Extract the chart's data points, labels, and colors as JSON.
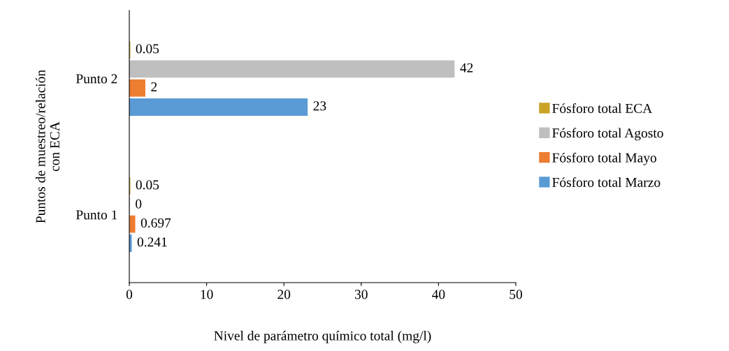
{
  "chart_data": {
    "type": "bar",
    "orientation": "horizontal",
    "categories": [
      "Punto 2",
      "Punto 1"
    ],
    "series": [
      {
        "name": "Fósforo total ECA",
        "color": "#c9a227",
        "values": [
          0.05,
          0.05
        ]
      },
      {
        "name": "Fósforo total Agosto",
        "color": "#bfbfbf",
        "values": [
          42,
          0
        ]
      },
      {
        "name": "Fósforo total Mayo",
        "color": "#ed7d31",
        "values": [
          2,
          0.697
        ]
      },
      {
        "name": "Fósforo total Marzo",
        "color": "#5b9bd5",
        "values": [
          23,
          0.241
        ]
      }
    ],
    "xlabel": "Nivel de parámetro químico total (mg/l)",
    "ylabel": "Puntos de muestreo/relación\ncon ECA",
    "xlim": [
      0,
      50
    ],
    "xticks": [
      0,
      10,
      20,
      30,
      40,
      50
    ],
    "data_labels": true,
    "legend": "right",
    "grid": false
  }
}
